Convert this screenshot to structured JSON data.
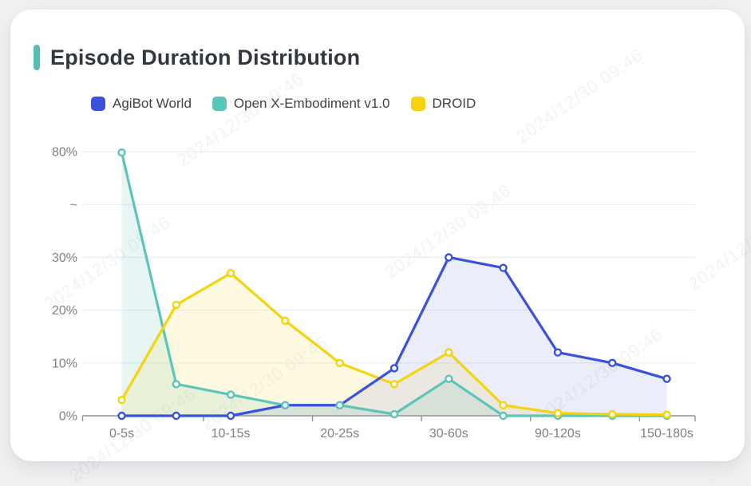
{
  "page": {
    "watermark": "2024/12/30 09:46"
  },
  "title": "Episode Duration Distribution",
  "chart_data": {
    "type": "line",
    "title": "Episode Duration Distribution",
    "categories": [
      "0-5s",
      "",
      "10-15s",
      "",
      "20-25s",
      "",
      "30-60s",
      "",
      "90-120s",
      "",
      "150-180s"
    ],
    "x_tick_labels_shown": [
      "0-5s",
      "10-15s",
      "20-25s",
      "30-60s",
      "90-120s",
      "150-180s"
    ],
    "y_axis": {
      "unit": "%",
      "labels_top_down": [
        "80%",
        "~",
        "30%",
        "20%",
        "10%",
        "0%"
      ],
      "break_note": "axis break (~) between 30% and 80%",
      "ylim": [
        0,
        80
      ]
    },
    "grid": true,
    "legend_position": "top",
    "series": [
      {
        "name": "AgiBot World",
        "color": "#3a51dc",
        "fill": "rgba(58,81,220,0.10)",
        "values": [
          0,
          0,
          0,
          2,
          2,
          9,
          30,
          28,
          12,
          10,
          7
        ]
      },
      {
        "name": "Open X-Embodiment v1.0",
        "color": "#5cc5b9",
        "fill": "rgba(92,197,185,0.15)",
        "values": [
          79.6,
          6,
          4,
          2,
          2,
          0.3,
          7,
          0,
          0,
          0,
          0
        ]
      },
      {
        "name": "DROID",
        "color": "#f5d40e",
        "fill": "rgba(245,212,14,0.12)",
        "values": [
          3,
          21,
          27,
          18,
          10,
          6,
          12,
          2,
          0.5,
          0.3,
          0.2
        ]
      }
    ]
  }
}
